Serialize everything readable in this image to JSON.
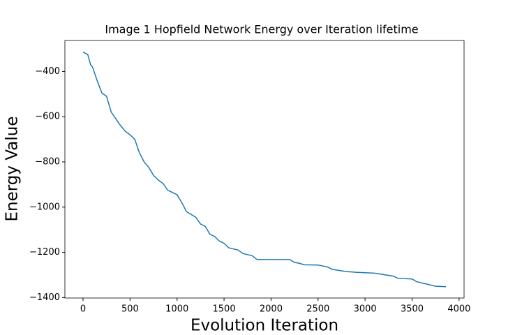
{
  "chart_data": {
    "type": "line",
    "title": "Image 1 Hopfield Network Energy over Iteration lifetime",
    "x_label": "Evolution Iteration",
    "y_label": "Energy Value",
    "x": [
      0,
      50,
      80,
      100,
      150,
      200,
      250,
      300,
      350,
      400,
      450,
      500,
      550,
      600,
      650,
      700,
      750,
      800,
      850,
      900,
      1000,
      1050,
      1100,
      1200,
      1250,
      1300,
      1350,
      1400,
      1450,
      1500,
      1550,
      1650,
      1700,
      1800,
      1850,
      2200,
      2250,
      2300,
      2350,
      2500,
      2600,
      2650,
      2800,
      2900,
      3100,
      3300,
      3350,
      3500,
      3550,
      3650,
      3750,
      3860
    ],
    "series": [
      {
        "name": "Energy",
        "color": "#1f77b4",
        "values": [
          -315,
          -325,
          -370,
          -380,
          -440,
          -495,
          -510,
          -580,
          -610,
          -640,
          -665,
          -680,
          -700,
          -760,
          -800,
          -825,
          -860,
          -880,
          -895,
          -925,
          -945,
          -980,
          -1020,
          -1045,
          -1075,
          -1085,
          -1120,
          -1130,
          -1150,
          -1160,
          -1180,
          -1190,
          -1205,
          -1215,
          -1232,
          -1232,
          -1245,
          -1248,
          -1255,
          -1256,
          -1265,
          -1275,
          -1285,
          -1288,
          -1292,
          -1305,
          -1315,
          -1318,
          -1330,
          -1340,
          -1350,
          -1352
        ]
      }
    ],
    "xlim": [
      -193,
      4053
    ],
    "ylim": [
      -1402,
      -263
    ],
    "xticks": [
      0,
      500,
      1000,
      1500,
      2000,
      2500,
      3000,
      3500,
      4000
    ],
    "yticks": [
      {
        "value": -1400,
        "label": "−1400"
      },
      {
        "value": -1200,
        "label": "−1200"
      },
      {
        "value": -1000,
        "label": "−1000"
      },
      {
        "value": -800,
        "label": "−800"
      },
      {
        "value": -600,
        "label": "−600"
      },
      {
        "value": -400,
        "label": "−400"
      }
    ],
    "grid": false
  }
}
